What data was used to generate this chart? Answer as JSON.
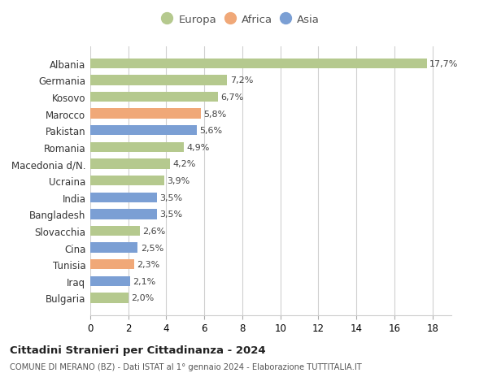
{
  "countries": [
    "Albania",
    "Germania",
    "Kosovo",
    "Marocco",
    "Pakistan",
    "Romania",
    "Macedonia d/N.",
    "Ucraina",
    "India",
    "Bangladesh",
    "Slovacchia",
    "Cina",
    "Tunisia",
    "Iraq",
    "Bulgaria"
  ],
  "values": [
    17.7,
    7.2,
    6.7,
    5.8,
    5.6,
    4.9,
    4.2,
    3.9,
    3.5,
    3.5,
    2.6,
    2.5,
    2.3,
    2.1,
    2.0
  ],
  "labels": [
    "17,7%",
    "7,2%",
    "6,7%",
    "5,8%",
    "5,6%",
    "4,9%",
    "4,2%",
    "3,9%",
    "3,5%",
    "3,5%",
    "2,6%",
    "2,5%",
    "2,3%",
    "2,1%",
    "2,0%"
  ],
  "continents": [
    "Europa",
    "Europa",
    "Europa",
    "Africa",
    "Asia",
    "Europa",
    "Europa",
    "Europa",
    "Asia",
    "Asia",
    "Europa",
    "Asia",
    "Africa",
    "Asia",
    "Europa"
  ],
  "colors": {
    "Europa": "#b5c98e",
    "Africa": "#f0a878",
    "Asia": "#7b9fd4"
  },
  "xlim": [
    0,
    19
  ],
  "xticks": [
    0,
    2,
    4,
    6,
    8,
    10,
    12,
    14,
    16,
    18
  ],
  "title": "Cittadini Stranieri per Cittadinanza - 2024",
  "subtitle": "COMUNE DI MERANO (BZ) - Dati ISTAT al 1° gennaio 2024 - Elaborazione TUTTITALIA.IT",
  "bg_color": "#ffffff",
  "grid_color": "#d0d0d0",
  "bar_height": 0.6
}
